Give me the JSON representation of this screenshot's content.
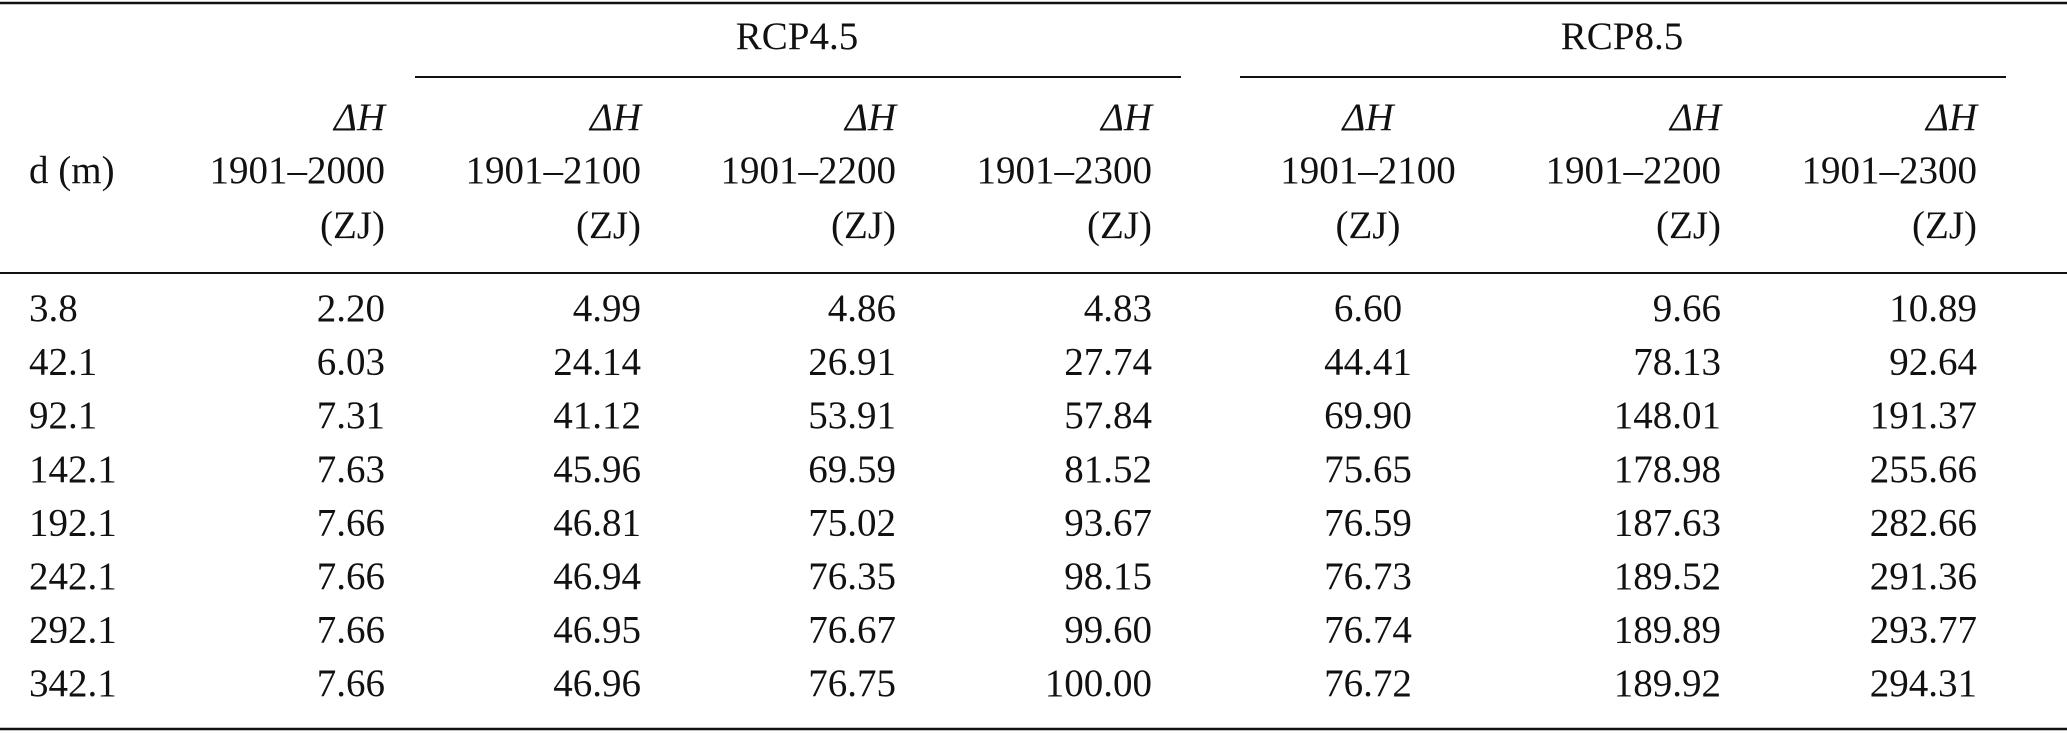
{
  "table": {
    "groups": [
      "RCP4.5",
      "RCP8.5"
    ],
    "columns": [
      [
        "d (m)"
      ],
      [
        "ΔH",
        "1901–2000",
        "(ZJ)"
      ],
      [
        "ΔH",
        "1901–2100",
        "(ZJ)"
      ],
      [
        "ΔH",
        "1901–2200",
        "(ZJ)"
      ],
      [
        "ΔH",
        "1901–2300",
        "(ZJ)"
      ],
      [
        "ΔH",
        "1901–2100",
        "(ZJ)"
      ],
      [
        "ΔH",
        "1901–2200",
        "(ZJ)"
      ],
      [
        "ΔH",
        "1901–2300",
        "(ZJ)"
      ]
    ],
    "rows": [
      [
        "3.8",
        "2.20",
        "4.99",
        "4.86",
        "4.83",
        "6.60",
        "9.66",
        "10.89"
      ],
      [
        "42.1",
        "6.03",
        "24.14",
        "26.91",
        "27.74",
        "44.41",
        "78.13",
        "92.64"
      ],
      [
        "92.1",
        "7.31",
        "41.12",
        "53.91",
        "57.84",
        "69.90",
        "148.01",
        "191.37"
      ],
      [
        "142.1",
        "7.63",
        "45.96",
        "69.59",
        "81.52",
        "75.65",
        "178.98",
        "255.66"
      ],
      [
        "192.1",
        "7.66",
        "46.81",
        "75.02",
        "93.67",
        "76.59",
        "187.63",
        "282.66"
      ],
      [
        "242.1",
        "7.66",
        "46.94",
        "76.35",
        "98.15",
        "76.73",
        "189.52",
        "291.36"
      ],
      [
        "292.1",
        "7.66",
        "46.95",
        "76.67",
        "99.60",
        "76.74",
        "189.89",
        "293.77"
      ],
      [
        "342.1",
        "7.66",
        "46.96",
        "76.75",
        "100.00",
        "76.72",
        "189.92",
        "294.31"
      ]
    ]
  }
}
